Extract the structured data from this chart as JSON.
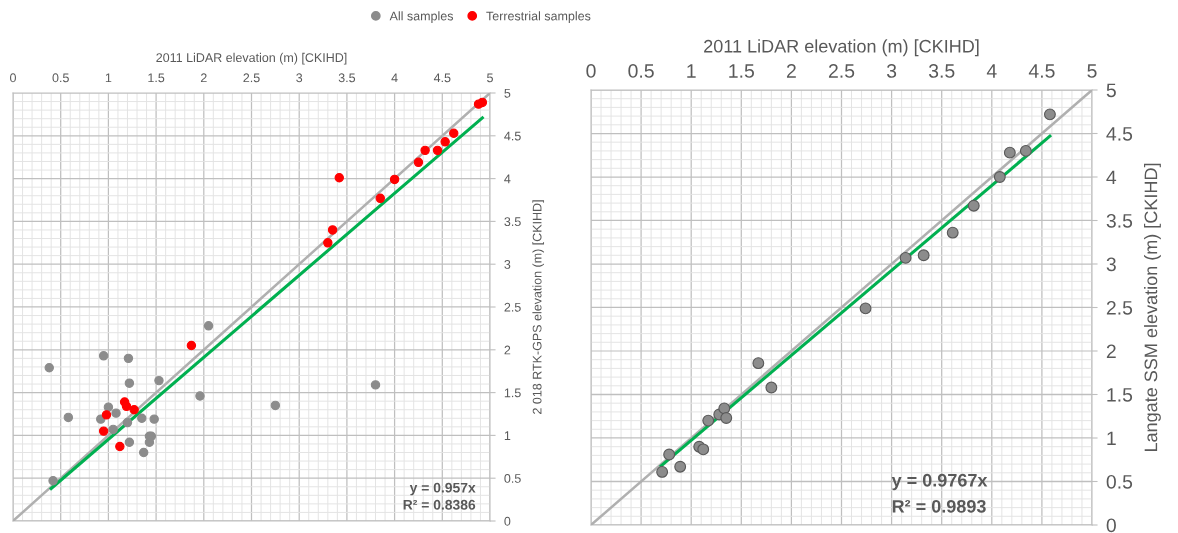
{
  "chart_data": [
    {
      "type": "scatter",
      "xlabel": "2011 LiDAR elevation (m) [CKIHD]",
      "ylabel": "2 018 RTK-GPS elevation (m) [CKIHD]",
      "xlim": [
        0,
        5
      ],
      "ylim": [
        0,
        5
      ],
      "xticks": [
        0,
        0.5,
        1,
        1.5,
        2,
        2.5,
        3,
        3.5,
        4,
        4.5,
        5
      ],
      "yticks": [
        0,
        0.5,
        1,
        1.5,
        2,
        2.5,
        3,
        3.5,
        4,
        4.5,
        5
      ],
      "grid": true,
      "legend": "top",
      "series": [
        {
          "name": "All samples",
          "marker": "circle",
          "color": "#8c8c8c",
          "x": [
            0.38,
            0.42,
            0.58,
            0.92,
            0.95,
            1.0,
            1.05,
            1.08,
            1.2,
            1.21,
            1.22,
            1.22,
            1.35,
            1.37,
            1.43,
            1.43,
            1.45,
            1.48,
            1.53,
            1.96,
            2.05,
            2.75,
            3.8
          ],
          "values": [
            1.79,
            0.47,
            1.21,
            1.19,
            1.93,
            1.33,
            1.07,
            1.26,
            1.15,
            1.9,
            1.61,
            0.92,
            1.2,
            0.8,
            0.92,
            0.99,
            0.99,
            1.19,
            1.64,
            1.46,
            2.28,
            1.35,
            1.59
          ]
        },
        {
          "name": "Terrestrial samples",
          "marker": "circle",
          "color": "#ff0000",
          "x": [
            0.95,
            0.98,
            1.12,
            1.17,
            1.19,
            1.27,
            1.87,
            3.3,
            3.35,
            3.42,
            3.85,
            4.0,
            4.25,
            4.32,
            4.45,
            4.53,
            4.62,
            4.88,
            4.92
          ],
          "values": [
            1.05,
            1.24,
            0.87,
            1.39,
            1.34,
            1.3,
            2.05,
            3.25,
            3.4,
            4.01,
            3.77,
            3.99,
            4.19,
            4.33,
            4.33,
            4.43,
            4.53,
            4.87,
            4.89
          ]
        },
        {
          "type": "line",
          "color": "#b0b0b0",
          "x": [
            0,
            5
          ],
          "values": [
            0,
            5
          ]
        },
        {
          "type": "line",
          "color": "#00b050",
          "x": [
            0.4,
            4.92
          ],
          "values": [
            0.38,
            4.71
          ]
        }
      ],
      "annotations": [
        "y = 0.957x",
        "R² = 0.8386"
      ]
    },
    {
      "type": "scatter",
      "xlabel": "2011 LiDAR elevation (m) [CKIHD]",
      "ylabel": "Langate SSM elevation (m) [CKIHD]",
      "xlim": [
        0,
        5
      ],
      "ylim": [
        0,
        5
      ],
      "xticks": [
        0,
        0.5,
        1,
        1.5,
        2,
        2.5,
        3,
        3.5,
        4,
        4.5,
        5
      ],
      "yticks": [
        0,
        0.5,
        1,
        1.5,
        2,
        2.5,
        3,
        3.5,
        4,
        4.5,
        5
      ],
      "grid": true,
      "series": [
        {
          "marker": "circle",
          "color": "#8c8c8c",
          "x": [
            0.71,
            0.78,
            0.89,
            1.08,
            1.12,
            1.17,
            1.28,
            1.33,
            1.35,
            1.67,
            1.8,
            2.74,
            3.14,
            3.32,
            3.61,
            3.82,
            4.08,
            4.18,
            4.34,
            4.58
          ],
          "values": [
            0.61,
            0.81,
            0.67,
            0.9,
            0.87,
            1.2,
            1.27,
            1.34,
            1.23,
            1.86,
            1.58,
            2.49,
            3.07,
            3.1,
            3.36,
            3.67,
            4.0,
            4.28,
            4.3,
            4.72
          ]
        },
        {
          "type": "line",
          "color": "#b0b0b0",
          "x": [
            0,
            5
          ],
          "values": [
            0,
            5
          ]
        },
        {
          "type": "line",
          "color": "#00b050",
          "x": [
            0.7,
            4.58
          ],
          "values": [
            0.68,
            4.47
          ]
        }
      ],
      "annotations": [
        "y = 0.9767x",
        "R² = 0.9893"
      ]
    }
  ]
}
